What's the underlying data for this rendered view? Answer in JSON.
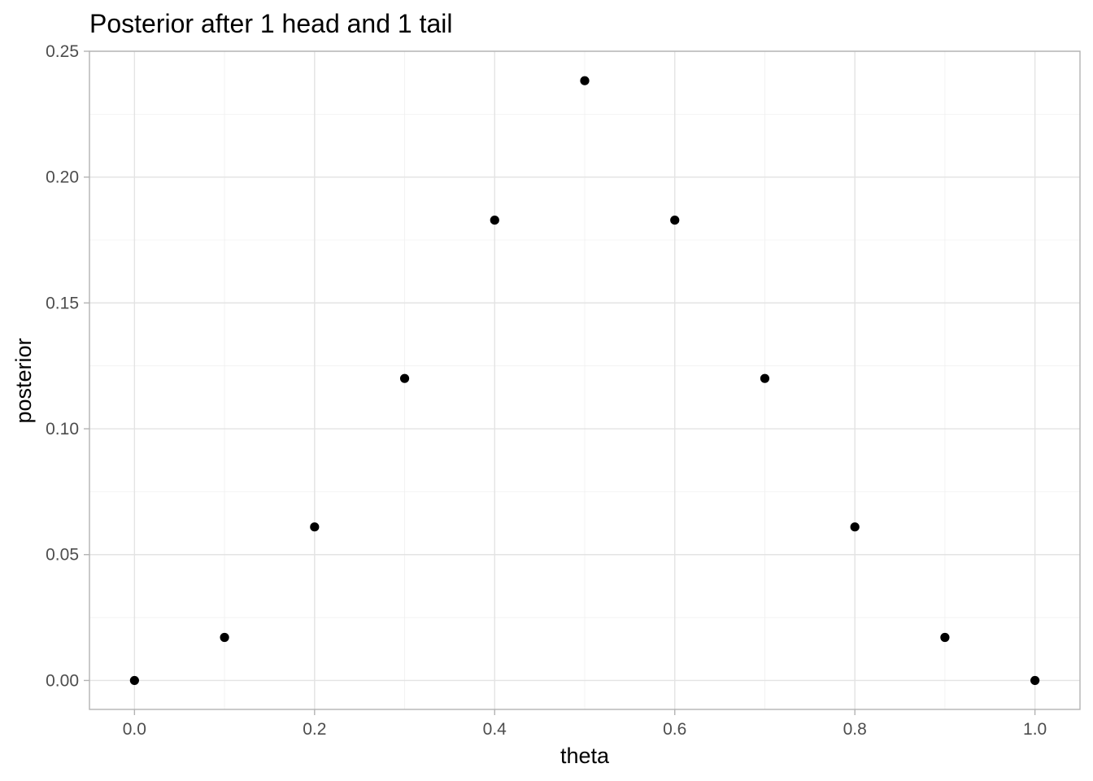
{
  "chart_data": {
    "type": "scatter",
    "title": "Posterior after 1 head and 1 tail",
    "xlabel": "theta",
    "ylabel": "posterior",
    "xlim": [
      -0.05,
      1.05
    ],
    "ylim": [
      -0.0115,
      0.25
    ],
    "x_ticks": [
      0.0,
      0.2,
      0.4,
      0.6,
      0.8,
      1.0
    ],
    "x_tick_labels": [
      "0.0",
      "0.2",
      "0.4",
      "0.6",
      "0.8",
      "1.0"
    ],
    "y_ticks": [
      0.0,
      0.05,
      0.1,
      0.15,
      0.2,
      0.25
    ],
    "y_tick_labels": [
      "0.00",
      "0.05",
      "0.10",
      "0.15",
      "0.20",
      "0.25"
    ],
    "grid": true,
    "point_color": "#000000",
    "x": [
      0.0,
      0.1,
      0.2,
      0.3,
      0.4,
      0.5,
      0.6,
      0.7,
      0.8,
      0.9,
      1.0
    ],
    "y": [
      0.0,
      0.0171,
      0.061,
      0.12,
      0.1829,
      0.2383,
      0.1829,
      0.12,
      0.061,
      0.0171,
      0.0
    ]
  }
}
